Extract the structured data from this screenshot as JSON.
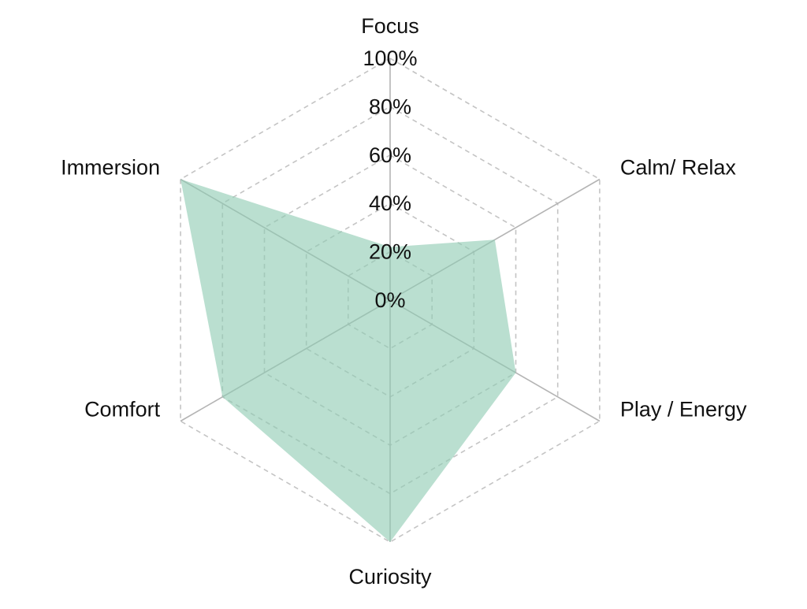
{
  "chart_data": {
    "type": "radar",
    "categories": [
      "Focus",
      "Calm/ Relax",
      "Play / Energy",
      "Curiosity",
      "Comfort",
      "Immersion"
    ],
    "series": [
      {
        "values": [
          22,
          50,
          60,
          100,
          80,
          100
        ]
      }
    ],
    "r_ticks": [
      0,
      20,
      40,
      60,
      80,
      100
    ],
    "r_tick_labels": [
      "0%",
      "20%",
      "40%",
      "60%",
      "80%",
      "100%"
    ],
    "rlim": [
      0,
      100
    ],
    "grid": true,
    "legend": "none",
    "colors": {
      "fill": "#8fcbb3",
      "fill_opacity": 0.62,
      "spoke": "#b4b4b4",
      "ring": "#c4c4c4",
      "text": "#111111"
    }
  }
}
